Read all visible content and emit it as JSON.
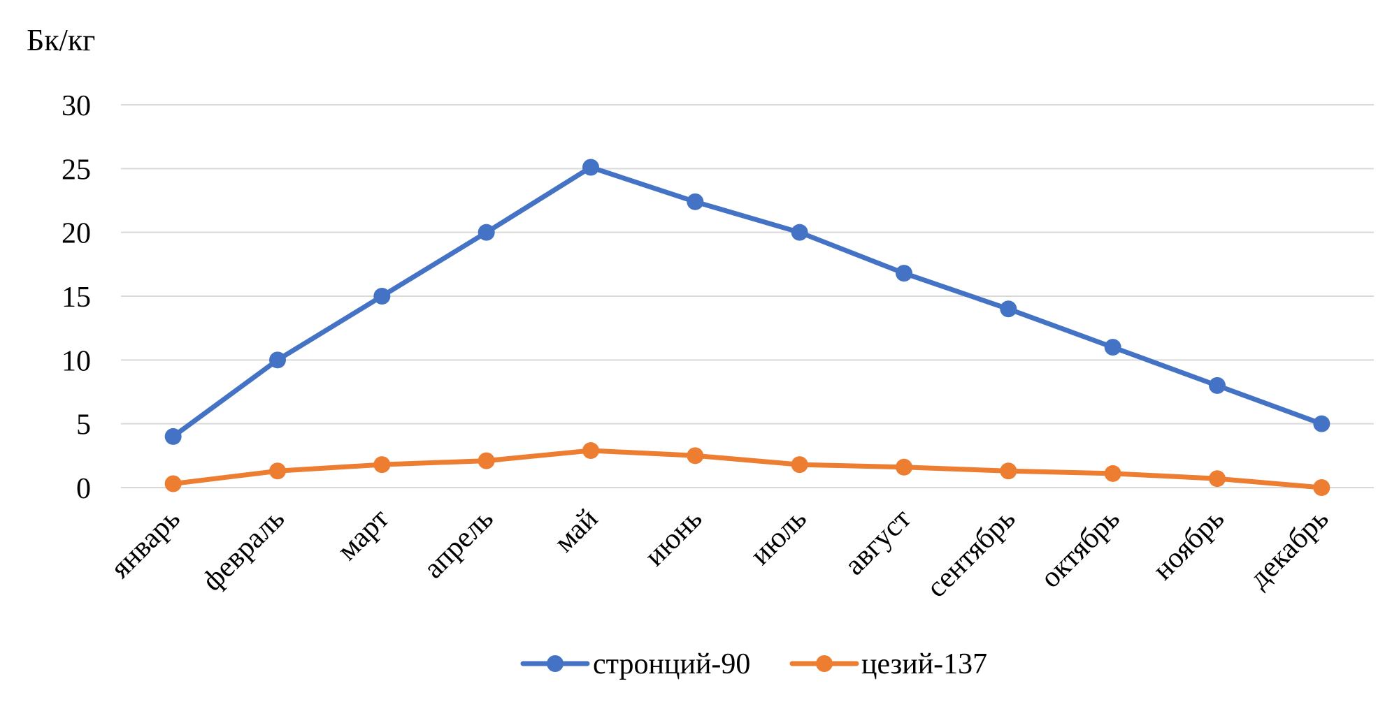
{
  "chart_data": {
    "type": "line",
    "ylabel": "Бк/кг",
    "ylim": [
      0,
      30
    ],
    "yticks": [
      0,
      5,
      10,
      15,
      20,
      25,
      30
    ],
    "ytick_labels": [
      "0",
      "5",
      "10",
      "15",
      "20",
      "25",
      "30"
    ],
    "grid": true,
    "legend_position": "bottom",
    "categories": [
      "январь",
      "февраль",
      "март",
      "апрель",
      "май",
      "июнь",
      "июль",
      "август",
      "сентябрь",
      "октябрь",
      "ноябрь",
      "декабрь"
    ],
    "series": [
      {
        "name": "стронций-90",
        "color": "#4472c4",
        "values": [
          4,
          10,
          15,
          20,
          25.1,
          22.4,
          20,
          16.8,
          14,
          11,
          8,
          5
        ]
      },
      {
        "name": "цезий-137",
        "color": "#ed7d31",
        "values": [
          0.3,
          1.3,
          1.8,
          2.1,
          2.9,
          2.5,
          1.8,
          1.6,
          1.3,
          1.1,
          0.7,
          0
        ]
      }
    ]
  }
}
